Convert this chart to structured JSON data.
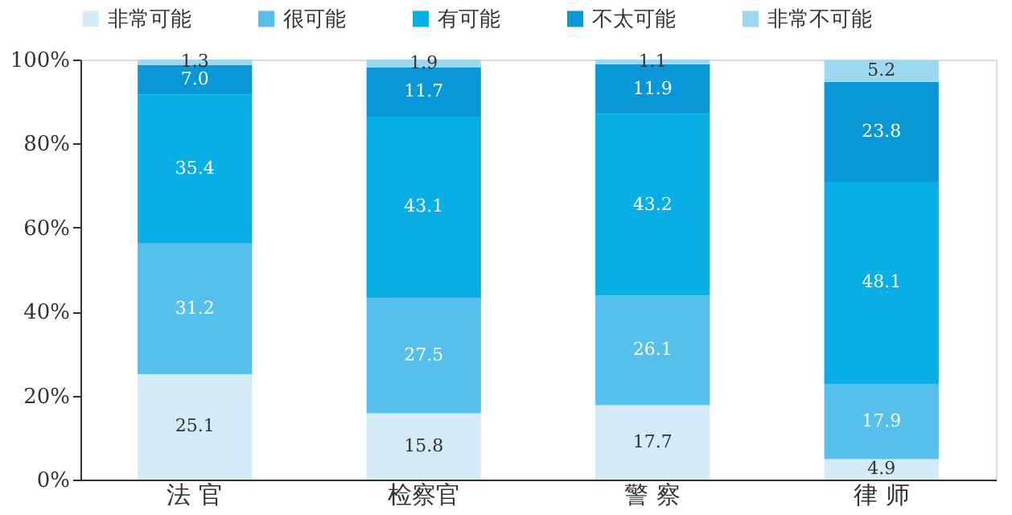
{
  "chart_data": {
    "type": "bar",
    "stacked": true,
    "legend": "top",
    "grid": false,
    "categories": [
      "法  官",
      "检察官",
      "警  察",
      "律  师"
    ],
    "series": [
      {
        "name": "非常可能",
        "color": "#d4ebf8",
        "values": [
          25.1,
          15.8,
          17.7,
          4.9
        ],
        "value_labels": [
          "25.1",
          "15.8",
          "17.7",
          "4.9"
        ]
      },
      {
        "name": "很可能",
        "color": "#56c0ec",
        "values": [
          31.2,
          27.5,
          26.1,
          17.9
        ],
        "value_labels": [
          "31.2",
          "27.5",
          "26.1",
          "17.9"
        ]
      },
      {
        "name": "有可能",
        "color": "#08aee6",
        "values": [
          35.4,
          43.1,
          43.2,
          48.1
        ],
        "value_labels": [
          "35.4",
          "43.1",
          "43.2",
          "48.1"
        ]
      },
      {
        "name": "不太可能",
        "color": "#0898d8",
        "values": [
          7.0,
          11.7,
          11.9,
          23.8
        ],
        "value_labels": [
          "7.0",
          "11.7",
          "11.9",
          "23.8"
        ]
      },
      {
        "name": "非常不可能",
        "color": "#9dd8f3",
        "values": [
          1.3,
          1.9,
          1.1,
          5.2
        ],
        "value_labels": [
          "1.3",
          "1.9",
          "1.1",
          "5.2"
        ]
      }
    ],
    "ylim": [
      0,
      100
    ],
    "yticks": [
      {
        "value": 0,
        "label": "0%"
      },
      {
        "value": 20,
        "label": "20%"
      },
      {
        "value": 40,
        "label": "40%"
      },
      {
        "value": 60,
        "label": "60%"
      },
      {
        "value": 80,
        "label": "80%"
      },
      {
        "value": 100,
        "label": "100%"
      }
    ]
  }
}
